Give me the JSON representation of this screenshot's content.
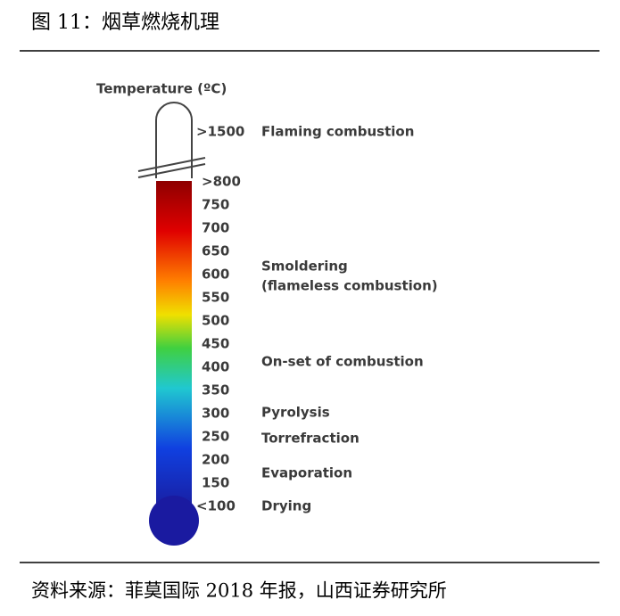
{
  "header": {
    "title": "图 11：烟草燃烧机理"
  },
  "figure": {
    "title": "Temperature (ºC)",
    "ticks": [
      ">1500",
      ">800",
      "750",
      "700",
      "650",
      "600",
      "550",
      "500",
      "450",
      "400",
      "350",
      "300",
      "250",
      "200",
      "150",
      "<100"
    ],
    "stages": [
      {
        "lines": [
          "Flaming combustion"
        ]
      },
      {
        "lines": [
          "Smoldering",
          "(flameless  combustion)"
        ]
      },
      {
        "lines": [
          "On-set of combustion"
        ]
      },
      {
        "lines": [
          "Pyrolysis"
        ]
      },
      {
        "lines": [
          "Torrefraction"
        ]
      },
      {
        "lines": [
          "Evaporation"
        ]
      },
      {
        "lines": [
          "Drying"
        ]
      }
    ]
  },
  "footer": {
    "source": "资料来源：菲莫国际 2018 年报，山西证券研究所"
  }
}
